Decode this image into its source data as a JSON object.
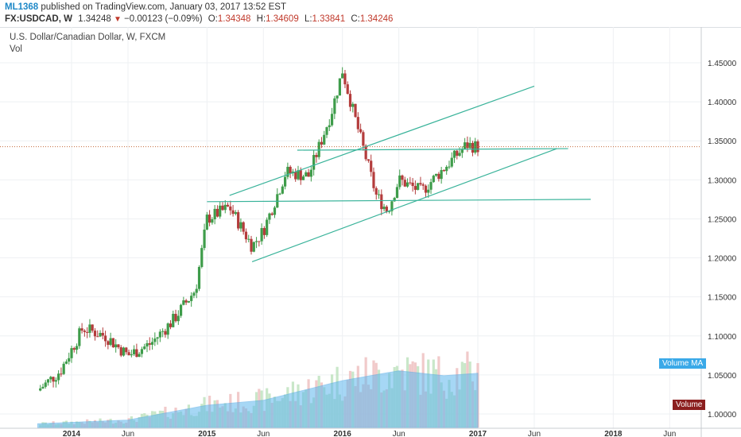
{
  "header": {
    "author": "ML1368",
    "published": "published on TradingView.com, January 03, 2017 13:52 EST",
    "symbol": "FX:USDCAD, W",
    "last": "1.34248",
    "change": "−0.00123 (−0.09%)",
    "open_label": "O:",
    "open": "1.34348",
    "high_label": "H:",
    "high": "1.34609",
    "low_label": "L:",
    "low": "1.33841",
    "close_label": "C:",
    "close": "1.34246"
  },
  "pane": {
    "title": "U.S. Dollar/Canadian Dollar, W, FXCM",
    "vol_label": "Vol",
    "volume_ma_badge": "Volume MA",
    "volume_badge": "Volume"
  },
  "colors": {
    "up": "#3e9c4a",
    "down": "#b43c3c",
    "trend": "#39b39a",
    "volume_ma": "#5fb7ee",
    "price_line": "#c46a3a"
  },
  "chart_data": {
    "type": "candlestick",
    "title": "U.S. Dollar/Canadian Dollar, W, FXCM",
    "x_ticks": [
      "2014",
      "Jun",
      "2015",
      "Jun",
      "2016",
      "Jun",
      "2017",
      "Jun",
      "2018",
      "Jun"
    ],
    "y_ticks": [
      "1.45000",
      "1.40000",
      "1.35000",
      "1.30000",
      "1.25000",
      "1.20000",
      "1.15000",
      "1.10000",
      "1.05000",
      "1.00000"
    ],
    "ylim": [
      1.0,
      1.45
    ],
    "last_close": 1.34246,
    "close_path": [
      [
        "2013-10",
        1.03
      ],
      [
        "2013-12",
        1.055
      ],
      [
        "2014-02",
        1.11
      ],
      [
        "2014-04",
        1.1
      ],
      [
        "2014-06",
        1.075
      ],
      [
        "2014-08",
        1.09
      ],
      [
        "2014-10",
        1.12
      ],
      [
        "2014-12",
        1.16
      ],
      [
        "2015-01",
        1.25
      ],
      [
        "2015-03",
        1.265
      ],
      [
        "2015-05",
        1.215
      ],
      [
        "2015-06",
        1.235
      ],
      [
        "2015-08",
        1.31
      ],
      [
        "2015-10",
        1.305
      ],
      [
        "2015-12",
        1.385
      ],
      [
        "2016-01",
        1.44
      ],
      [
        "2016-02",
        1.385
      ],
      [
        "2016-04",
        1.28
      ],
      [
        "2016-05",
        1.26
      ],
      [
        "2016-06",
        1.3
      ],
      [
        "2016-08",
        1.285
      ],
      [
        "2016-10",
        1.315
      ],
      [
        "2016-12",
        1.345
      ],
      [
        "2017-01",
        1.342
      ]
    ],
    "volume_ma": [
      [
        "2013-10",
        3
      ],
      [
        "2014-06",
        6
      ],
      [
        "2015-01",
        18
      ],
      [
        "2015-06",
        22
      ],
      [
        "2016-01",
        38
      ],
      [
        "2016-06",
        46
      ],
      [
        "2016-10",
        42
      ],
      [
        "2017-01",
        44
      ]
    ],
    "trendlines": [
      {
        "from": [
          "2015-03",
          1.28
        ],
        "to": [
          "2017-06",
          1.42
        ]
      },
      {
        "from": [
          "2015-05",
          1.195
        ],
        "to": [
          "2017-08",
          1.34
        ]
      },
      {
        "from": [
          "2015-01",
          1.272
        ],
        "to": [
          "2017-11",
          1.275
        ]
      },
      {
        "from": [
          "2015-09",
          1.338
        ],
        "to": [
          "2017-09",
          1.34
        ]
      }
    ]
  }
}
